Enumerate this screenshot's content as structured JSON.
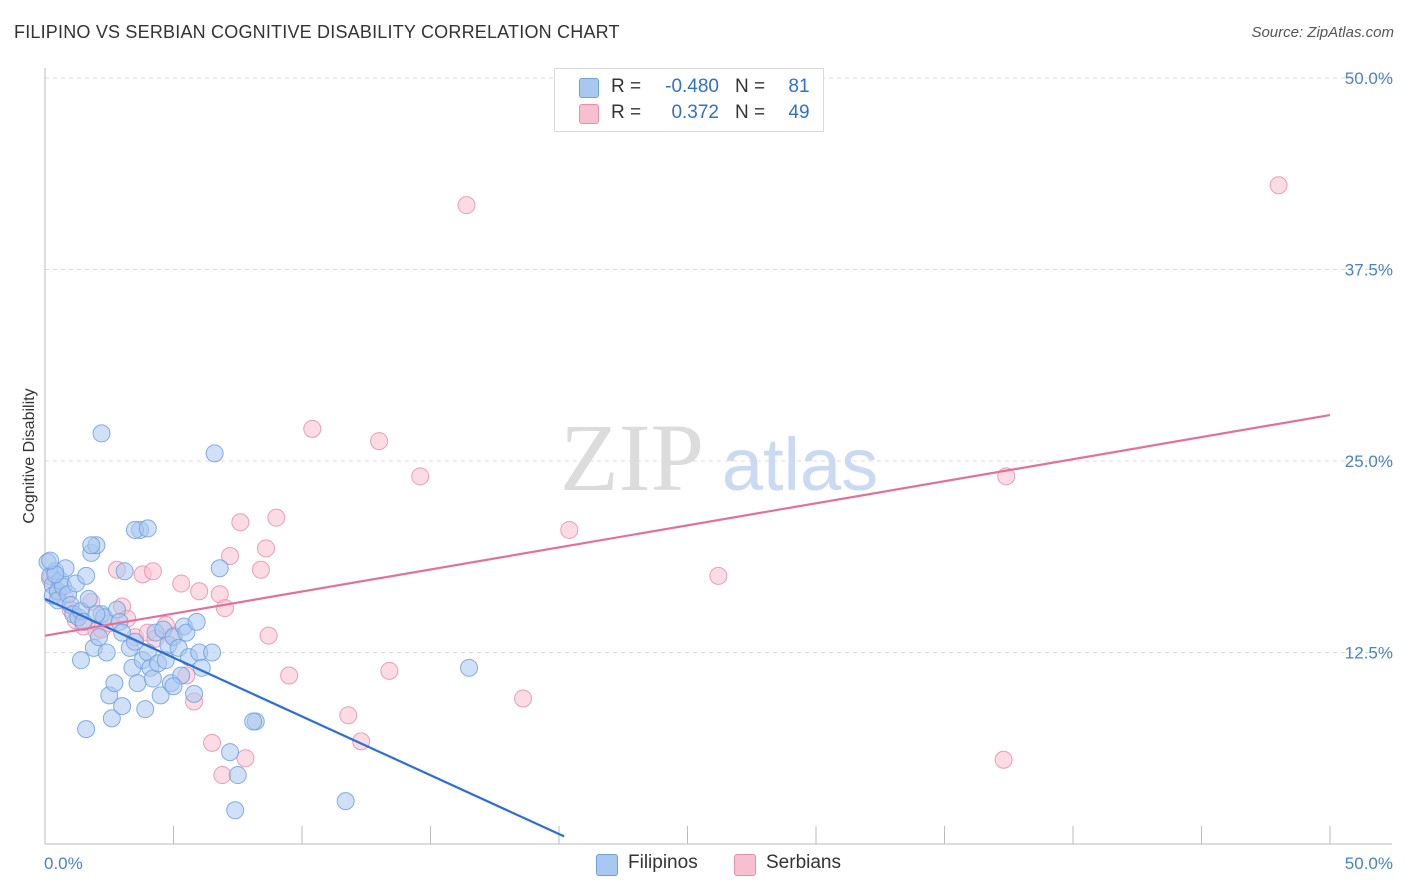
{
  "title": "FILIPINO VS SERBIAN COGNITIVE DISABILITY CORRELATION CHART",
  "source": "Source: ZipAtlas.com",
  "watermark": {
    "zip": "ZIP",
    "atlas": "atlas"
  },
  "legend": {
    "rows": [
      {
        "r_label": "R =",
        "r_value": "-0.480",
        "n_label": "N =",
        "n_value": "81"
      },
      {
        "r_label": "R =",
        "r_value": "0.372",
        "n_label": "N =",
        "n_value": "49"
      }
    ]
  },
  "bottom_legend": {
    "filipinos": "Filipinos",
    "serbians": "Serbians"
  },
  "colors": {
    "filipino_fill": "#a9c8f0",
    "filipino_stroke": "#6e9fe0",
    "filipino_line": "#2a6fd6",
    "serbian_fill": "#f7bfd0",
    "serbian_stroke": "#ea8eaa",
    "serbian_line": "#e2719a",
    "tick_text": "#4a7fd0"
  },
  "chart_data": {
    "type": "scatter",
    "title": "FILIPINO VS SERBIAN COGNITIVE DISABILITY CORRELATION CHART",
    "xlabel": "",
    "ylabel": "Cognitive Disability",
    "xlim": [
      0,
      50
    ],
    "ylim": [
      0,
      50
    ],
    "x_tick_labels": [
      "0.0%",
      "50.0%"
    ],
    "y_ticks": [
      12.5,
      25.0,
      37.5,
      50.0
    ],
    "y_tick_labels": [
      "12.5%",
      "25.0%",
      "37.5%",
      "50.0%"
    ],
    "grid": true,
    "legend_position": "top-center",
    "series": [
      {
        "name": "Filipinos",
        "r": -0.48,
        "n": 81,
        "trend": {
          "x": [
            0.0,
            20.2
          ],
          "y": [
            16.0,
            0.5
          ]
        },
        "points": [
          [
            0.1,
            18.4
          ],
          [
            0.2,
            17.5
          ],
          [
            0.3,
            16.9
          ],
          [
            0.3,
            16.2
          ],
          [
            0.4,
            17.8
          ],
          [
            0.5,
            16.5
          ],
          [
            0.5,
            15.9
          ],
          [
            0.6,
            17.2
          ],
          [
            0.7,
            16.8
          ],
          [
            0.8,
            18.0
          ],
          [
            0.9,
            16.3
          ],
          [
            1.0,
            15.6
          ],
          [
            1.1,
            15.0
          ],
          [
            1.2,
            17.0
          ],
          [
            1.3,
            14.8
          ],
          [
            1.4,
            15.2
          ],
          [
            1.5,
            14.5
          ],
          [
            1.6,
            17.5
          ],
          [
            1.7,
            16.0
          ],
          [
            1.8,
            19.0
          ],
          [
            1.9,
            12.8
          ],
          [
            2.0,
            19.5
          ],
          [
            2.1,
            13.5
          ],
          [
            2.2,
            15.0
          ],
          [
            2.3,
            14.8
          ],
          [
            2.4,
            12.5
          ],
          [
            2.5,
            9.7
          ],
          [
            2.6,
            8.2
          ],
          [
            2.7,
            10.5
          ],
          [
            2.8,
            15.3
          ],
          [
            2.9,
            14.5
          ],
          [
            3.0,
            13.8
          ],
          [
            3.1,
            17.8
          ],
          [
            3.3,
            12.8
          ],
          [
            3.4,
            11.5
          ],
          [
            3.5,
            13.2
          ],
          [
            3.6,
            10.5
          ],
          [
            3.7,
            20.5
          ],
          [
            3.8,
            12.0
          ],
          [
            3.9,
            8.8
          ],
          [
            4.0,
            12.5
          ],
          [
            4.1,
            11.5
          ],
          [
            4.2,
            10.8
          ],
          [
            4.3,
            13.8
          ],
          [
            4.4,
            11.8
          ],
          [
            4.5,
            9.7
          ],
          [
            4.6,
            14.0
          ],
          [
            4.7,
            12.0
          ],
          [
            4.8,
            13.0
          ],
          [
            4.9,
            10.5
          ],
          [
            5.0,
            13.5
          ],
          [
            5.2,
            12.8
          ],
          [
            5.3,
            11.0
          ],
          [
            5.4,
            14.2
          ],
          [
            5.5,
            13.8
          ],
          [
            5.6,
            12.2
          ],
          [
            5.8,
            9.8
          ],
          [
            5.9,
            14.5
          ],
          [
            6.0,
            12.5
          ],
          [
            6.1,
            11.5
          ],
          [
            2.2,
            26.8
          ],
          [
            6.6,
            25.5
          ],
          [
            3.5,
            20.5
          ],
          [
            6.8,
            18.0
          ],
          [
            7.2,
            6.0
          ],
          [
            8.2,
            8.0
          ],
          [
            7.5,
            4.5
          ],
          [
            4.0,
            20.6
          ],
          [
            1.6,
            7.5
          ],
          [
            8.1,
            8.0
          ],
          [
            1.8,
            19.5
          ],
          [
            0.4,
            17.6
          ],
          [
            11.7,
            2.8
          ],
          [
            7.4,
            2.2
          ],
          [
            16.5,
            11.5
          ],
          [
            6.5,
            12.5
          ],
          [
            2.0,
            15.0
          ],
          [
            5.0,
            10.3
          ],
          [
            3.0,
            9.0
          ],
          [
            1.4,
            12.0
          ],
          [
            0.2,
            18.5
          ]
        ]
      },
      {
        "name": "Serbians",
        "r": 0.372,
        "n": 49,
        "trend": {
          "x": [
            0.0,
            50.0
          ],
          "y": [
            13.6,
            28.0
          ]
        },
        "points": [
          [
            0.2,
            17.3
          ],
          [
            0.5,
            16.4
          ],
          [
            0.8,
            16.0
          ],
          [
            1.0,
            15.3
          ],
          [
            1.2,
            14.6
          ],
          [
            1.5,
            14.2
          ],
          [
            1.8,
            15.8
          ],
          [
            2.0,
            13.9
          ],
          [
            2.2,
            14.0
          ],
          [
            2.5,
            14.4
          ],
          [
            2.8,
            17.9
          ],
          [
            3.0,
            15.5
          ],
          [
            3.2,
            14.7
          ],
          [
            3.5,
            13.5
          ],
          [
            3.8,
            17.6
          ],
          [
            4.0,
            13.8
          ],
          [
            4.3,
            13.4
          ],
          [
            4.7,
            14.3
          ],
          [
            5.0,
            13.6
          ],
          [
            5.5,
            11.0
          ],
          [
            4.2,
            17.8
          ],
          [
            5.3,
            17.0
          ],
          [
            6.0,
            16.5
          ],
          [
            6.8,
            16.3
          ],
          [
            7.0,
            15.4
          ],
          [
            7.2,
            18.8
          ],
          [
            7.6,
            21.0
          ],
          [
            8.4,
            17.9
          ],
          [
            8.6,
            19.3
          ],
          [
            8.7,
            13.6
          ],
          [
            9.0,
            21.3
          ],
          [
            9.5,
            11.0
          ],
          [
            10.4,
            27.1
          ],
          [
            11.8,
            8.4
          ],
          [
            12.3,
            6.7
          ],
          [
            13.0,
            26.3
          ],
          [
            13.4,
            11.3
          ],
          [
            14.6,
            24.0
          ],
          [
            16.4,
            41.7
          ],
          [
            18.6,
            9.5
          ],
          [
            20.4,
            20.5
          ],
          [
            26.2,
            17.5
          ],
          [
            37.4,
            24.0
          ],
          [
            37.3,
            5.5
          ],
          [
            48.0,
            43.0
          ],
          [
            5.8,
            9.3
          ],
          [
            6.5,
            6.6
          ],
          [
            6.9,
            4.5
          ],
          [
            7.8,
            5.6
          ]
        ]
      }
    ]
  }
}
